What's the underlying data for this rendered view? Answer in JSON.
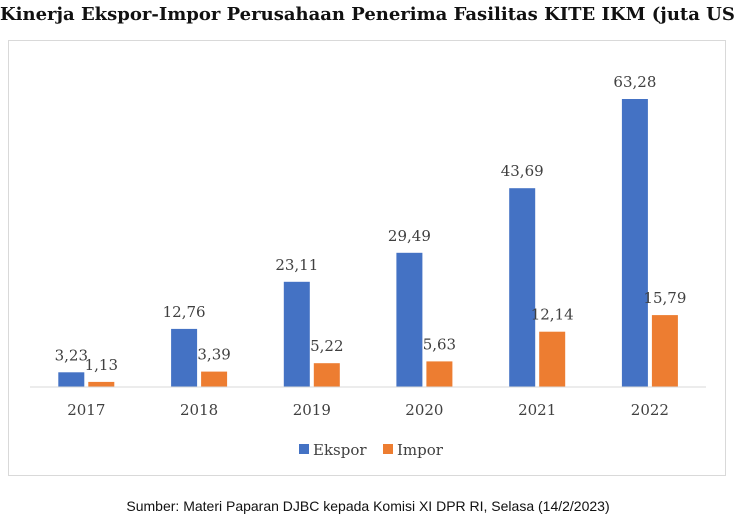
{
  "chart_data": {
    "type": "bar",
    "title": "Kinerja Ekspor-Impor Perusahaan Penerima Fasilitas KITE IKM (juta US$)",
    "categories": [
      "2017",
      "2018",
      "2019",
      "2020",
      "2021",
      "2022"
    ],
    "series": [
      {
        "name": "Ekspor",
        "color": "#4472c4",
        "values": [
          3.23,
          12.76,
          23.11,
          29.49,
          43.69,
          63.28
        ],
        "labels": [
          "3,23",
          "12,76",
          "23,11",
          "29,49",
          "43,69",
          "63,28"
        ]
      },
      {
        "name": "Impor",
        "color": "#ed7d31",
        "values": [
          1.13,
          3.39,
          5.22,
          5.63,
          12.14,
          15.79
        ],
        "labels": [
          "1,13",
          "3,39",
          "5,22",
          "5,63",
          "12,14",
          "15,79"
        ]
      }
    ],
    "ylim": [
      0,
      70
    ],
    "grid": false,
    "legend": "bottom-center"
  },
  "source": "Sumber: Materi Paparan DJBC kepada Komisi XI DPR RI, Selasa (14/2/2023)"
}
